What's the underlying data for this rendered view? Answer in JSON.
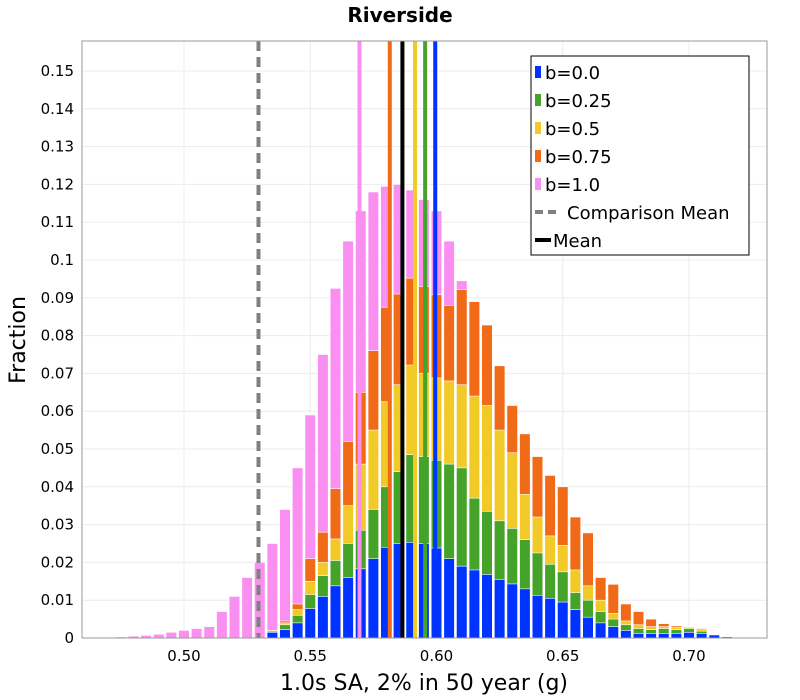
{
  "chart_data": {
    "type": "bar",
    "stacked": true,
    "title": "Riverside",
    "xlabel": "1.0s SA, 2% in 50 year (g)",
    "ylabel": "Fraction",
    "xlim": [
      0.465,
      0.73
    ],
    "ylim": [
      0,
      0.158
    ],
    "grid": true,
    "legend_position": "top-right",
    "x_ticks": [
      "0.50",
      "0.55",
      "0.60",
      "0.65",
      "0.70"
    ],
    "x_tick_values": [
      0.5,
      0.55,
      0.6,
      0.65,
      0.7
    ],
    "y_ticks": [
      "0",
      "0.01",
      "0.02",
      "0.03",
      "0.04",
      "0.05",
      "0.06",
      "0.07",
      "0.08",
      "0.09",
      "0.1",
      "0.11",
      "0.12",
      "0.13",
      "0.14",
      "0.15"
    ],
    "y_tick_values": [
      0,
      0.01,
      0.02,
      0.03,
      0.04,
      0.05,
      0.06,
      0.07,
      0.08,
      0.09,
      0.1,
      0.11,
      0.12,
      0.13,
      0.14,
      0.15
    ],
    "bin_width": 0.005,
    "bin_centers": [
      0.475,
      0.48,
      0.485,
      0.49,
      0.495,
      0.5,
      0.505,
      0.51,
      0.515,
      0.52,
      0.525,
      0.53,
      0.535,
      0.54,
      0.545,
      0.55,
      0.555,
      0.56,
      0.565,
      0.57,
      0.575,
      0.58,
      0.585,
      0.59,
      0.595,
      0.6,
      0.605,
      0.61,
      0.615,
      0.62,
      0.625,
      0.63,
      0.635,
      0.64,
      0.645,
      0.65,
      0.655,
      0.66,
      0.665,
      0.67,
      0.675,
      0.68,
      0.685,
      0.69,
      0.695,
      0.7,
      0.705,
      0.71,
      0.715
    ],
    "cumulative_tops": {
      "b=0.0": [
        0,
        0,
        0,
        0,
        0,
        0,
        0,
        0,
        0,
        0,
        0,
        0,
        0.0015,
        0.0022,
        0.004,
        0.0078,
        0.011,
        0.0138,
        0.016,
        0.0183,
        0.021,
        0.024,
        0.025,
        0.0253,
        0.025,
        0.0238,
        0.021,
        0.019,
        0.018,
        0.0168,
        0.0155,
        0.0143,
        0.013,
        0.0113,
        0.0105,
        0.0095,
        0.0075,
        0.0055,
        0.004,
        0.003,
        0.002,
        0.0012,
        0.0012,
        0.0012,
        0.0012,
        0.0015,
        0.0012,
        0.0008,
        0.0003
      ],
      "b=0.25": [
        0,
        0,
        0,
        0,
        0,
        0,
        0,
        0,
        0,
        0,
        0,
        0,
        0.0018,
        0.0035,
        0.006,
        0.0115,
        0.0165,
        0.0205,
        0.025,
        0.0285,
        0.034,
        0.04,
        0.044,
        0.0485,
        0.048,
        0.047,
        0.046,
        0.045,
        0.037,
        0.0335,
        0.031,
        0.029,
        0.026,
        0.0225,
        0.0195,
        0.0175,
        0.012,
        0.01,
        0.007,
        0.005,
        0.0035,
        0.0025,
        0.0022,
        0.0025,
        0.0022,
        0.0025,
        0.0018,
        0.0008,
        0.0003
      ],
      "b=0.5": [
        0,
        0,
        0,
        0,
        0,
        0,
        0,
        0,
        0,
        0,
        0,
        0,
        0.002,
        0.004,
        0.0075,
        0.015,
        0.02,
        0.0262,
        0.035,
        0.046,
        0.055,
        0.0625,
        0.067,
        0.0722,
        0.07,
        0.0688,
        0.068,
        0.067,
        0.064,
        0.0615,
        0.055,
        0.049,
        0.038,
        0.032,
        0.027,
        0.0245,
        0.018,
        0.0138,
        0.01,
        0.0065,
        0.0045,
        0.0035,
        0.003,
        0.003,
        0.0028,
        0.0028,
        0.0022,
        0.0008,
        0.0003
      ],
      "b=0.75": [
        0,
        0,
        0,
        0,
        0,
        0,
        0,
        0,
        0,
        0,
        0,
        0,
        0.002,
        0.0045,
        0.009,
        0.021,
        0.028,
        0.0395,
        0.052,
        0.065,
        0.076,
        0.0875,
        0.091,
        0.0952,
        0.093,
        0.0908,
        0.088,
        0.0922,
        0.089,
        0.0828,
        0.072,
        0.0615,
        0.054,
        0.048,
        0.043,
        0.04,
        0.032,
        0.0278,
        0.016,
        0.0142,
        0.009,
        0.007,
        0.005,
        0.0038,
        0.0032,
        0.003,
        0.0025,
        0.0008,
        0.0003
      ],
      "b=1.0": [
        0.0003,
        0.0005,
        0.0007,
        0.001,
        0.0015,
        0.002,
        0.0025,
        0.003,
        0.007,
        0.011,
        0.016,
        0.02,
        0.025,
        0.034,
        0.045,
        0.059,
        0.075,
        0.0925,
        0.105,
        0.113,
        0.118,
        0.1195,
        0.12,
        0.1185,
        0.116,
        0.113,
        0.105,
        0.0945,
        0.082,
        0.0688,
        0.06,
        0.0535,
        0.048,
        0.0425,
        0.035,
        0.028,
        0.018,
        0.0145,
        0.008,
        0.0073,
        0.005,
        0.004,
        0.0035,
        0.0032,
        0.003,
        0.003,
        0.0025,
        0.0008,
        0.0003
      ]
    },
    "series": [
      {
        "name": "b=0.0",
        "color": "#0033ff",
        "mean": 0.5995
      },
      {
        "name": "b=0.25",
        "color": "#44a328",
        "mean": 0.5955
      },
      {
        "name": "b=0.5",
        "color": "#f2ca27",
        "mean": 0.5915
      },
      {
        "name": "b=0.75",
        "color": "#f06a18",
        "mean": 0.5815
      },
      {
        "name": "b=1.0",
        "color": "#f990f1",
        "mean": 0.5695
      }
    ],
    "reference_lines": [
      {
        "name": "Comparison Mean",
        "x": 0.5295,
        "color": "#808080",
        "style": "dashed"
      },
      {
        "name": "Mean",
        "x": 0.5865,
        "color": "#000000",
        "style": "solid"
      }
    ]
  }
}
